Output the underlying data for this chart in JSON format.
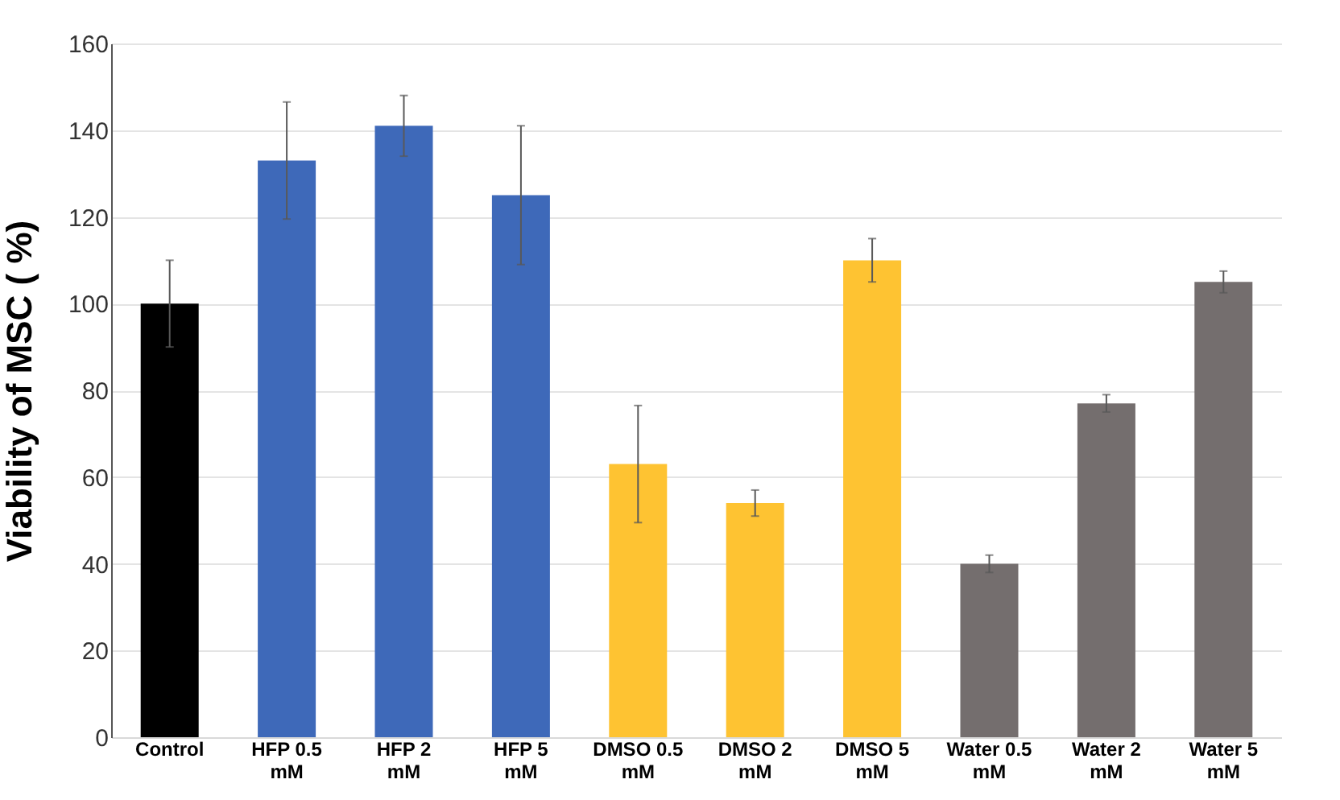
{
  "chart_data": {
    "type": "bar",
    "ylabel": "Viability of MSC ( %)",
    "categories": [
      "Control",
      "HFP 0.5 mM",
      "HFP 2 mM",
      "HFP 5 mM",
      "DMSO 0.5 mM",
      "DMSO 2 mM",
      "DMSO 5 mM",
      "Water 0.5 mM",
      "Water 2 mM",
      "Water 5 mM"
    ],
    "values": [
      100,
      133,
      141,
      125,
      63,
      54,
      110,
      40,
      77,
      105
    ],
    "errors": [
      10,
      13.5,
      7,
      16,
      13.5,
      3,
      5,
      2,
      2,
      2.5
    ],
    "colors": [
      "#000000",
      "#3e69b9",
      "#3e69b9",
      "#3e69b9",
      "#fec332",
      "#fec332",
      "#fec332",
      "#746e6e",
      "#746e6e",
      "#746e6e"
    ],
    "ylim": [
      0,
      160
    ],
    "yticks": [
      0,
      20,
      40,
      60,
      80,
      100,
      120,
      140,
      160
    ],
    "grid": "y"
  }
}
